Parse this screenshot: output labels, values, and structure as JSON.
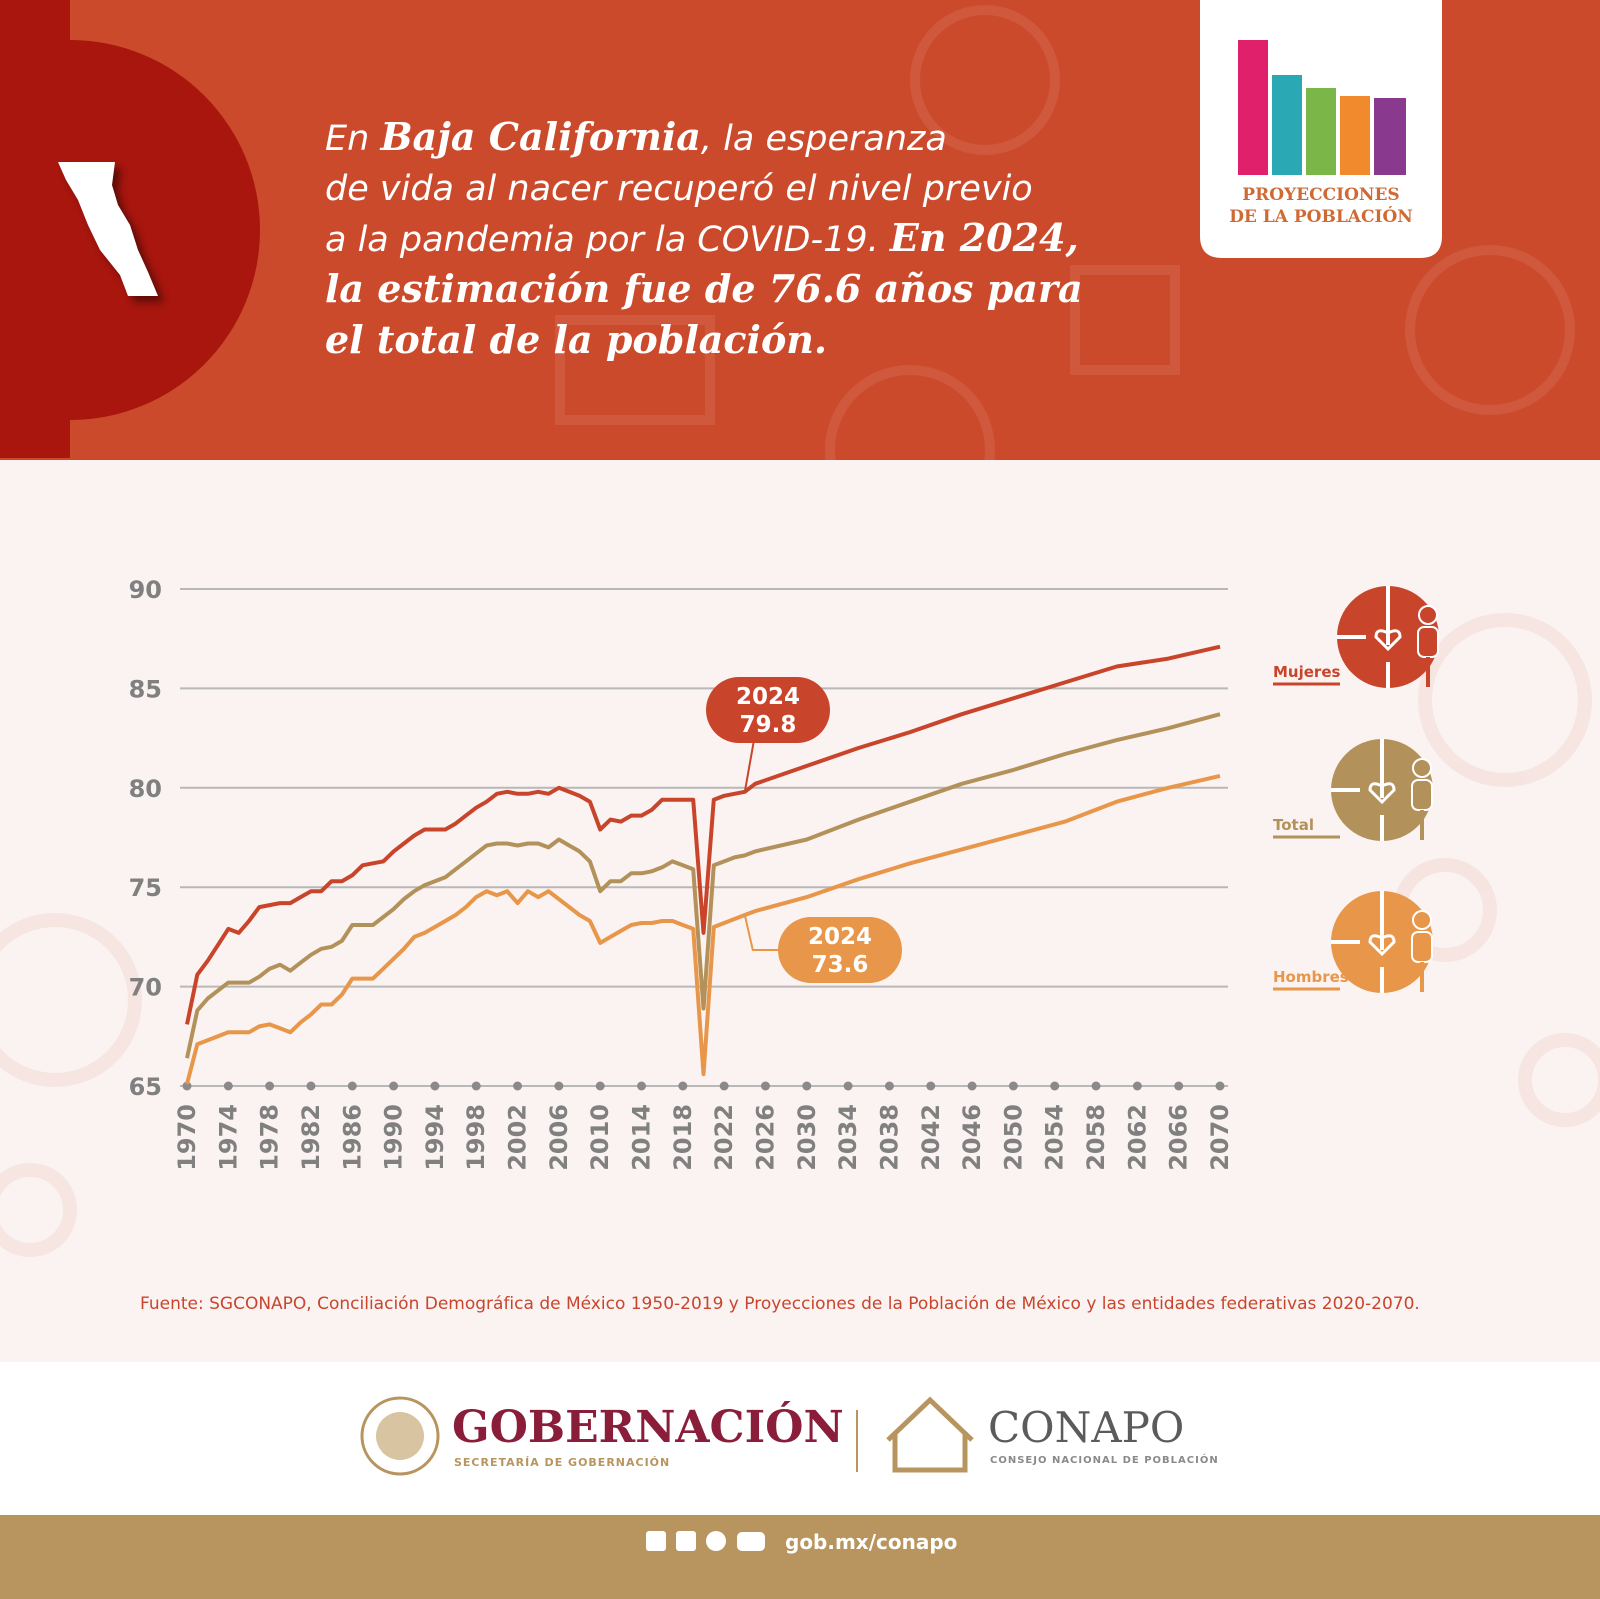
{
  "header": {
    "lines": [
      [
        "En ",
        "Baja California",
        ", la esperanza"
      ],
      [
        "de vida al nacer recuperó el nivel previo"
      ],
      [
        "a la pandemia por la COVID-19. ",
        "En 2024,"
      ],
      [
        "la estimación fue de 76.6 años para"
      ],
      [
        "el total de la población."
      ]
    ]
  },
  "logo": {
    "line1": "PROYECCIONES",
    "line2": "DE LA POBLACIÓN"
  },
  "chart_data": {
    "type": "line",
    "x": [
      1970,
      1971,
      1972,
      1973,
      1974,
      1975,
      1976,
      1977,
      1978,
      1979,
      1980,
      1981,
      1982,
      1983,
      1984,
      1985,
      1986,
      1987,
      1988,
      1989,
      1990,
      1991,
      1992,
      1993,
      1994,
      1995,
      1996,
      1997,
      1998,
      1999,
      2000,
      2001,
      2002,
      2003,
      2004,
      2005,
      2006,
      2007,
      2008,
      2009,
      2010,
      2011,
      2012,
      2013,
      2014,
      2015,
      2016,
      2017,
      2018,
      2019,
      2020,
      2021,
      2022,
      2023,
      2024,
      2025,
      2030,
      2035,
      2040,
      2045,
      2050,
      2055,
      2060,
      2065,
      2070
    ],
    "series": [
      {
        "name": "Mujeres",
        "color": "#c8452c",
        "values": [
          68.1,
          70.6,
          71.3,
          72.1,
          72.9,
          72.7,
          73.3,
          74.0,
          74.1,
          74.2,
          74.2,
          74.5,
          74.8,
          74.8,
          75.3,
          75.3,
          75.6,
          76.1,
          76.2,
          76.3,
          76.8,
          77.2,
          77.6,
          77.9,
          77.9,
          77.9,
          78.2,
          78.6,
          79.0,
          79.3,
          79.7,
          79.8,
          79.7,
          79.7,
          79.8,
          79.7,
          80.0,
          79.8,
          79.6,
          79.3,
          77.9,
          78.4,
          78.3,
          78.6,
          78.6,
          78.9,
          79.4,
          79.4,
          79.4,
          79.4,
          72.7,
          79.4,
          79.6,
          79.7,
          79.8,
          80.2,
          81.1,
          82.0,
          82.8,
          83.7,
          84.5,
          85.3,
          86.1,
          86.5,
          87.1
        ]
      },
      {
        "name": "Total",
        "color": "#b3915a",
        "values": [
          66.4,
          68.8,
          69.4,
          69.8,
          70.2,
          70.2,
          70.2,
          70.5,
          70.9,
          71.1,
          70.8,
          71.2,
          71.6,
          71.9,
          72.0,
          72.3,
          73.1,
          73.1,
          73.1,
          73.5,
          73.9,
          74.4,
          74.8,
          75.1,
          75.3,
          75.5,
          75.9,
          76.3,
          76.7,
          77.1,
          77.2,
          77.2,
          77.1,
          77.2,
          77.2,
          77.0,
          77.4,
          77.1,
          76.8,
          76.3,
          74.8,
          75.3,
          75.3,
          75.7,
          75.7,
          75.8,
          76.0,
          76.3,
          76.1,
          75.9,
          68.9,
          76.1,
          76.3,
          76.5,
          76.6,
          76.8,
          77.4,
          78.4,
          79.3,
          80.2,
          80.9,
          81.7,
          82.4,
          83.0,
          83.7
        ]
      },
      {
        "name": "Hombres",
        "color": "#e8964a",
        "values": [
          65.1,
          67.1,
          67.3,
          67.5,
          67.7,
          67.7,
          67.7,
          68.0,
          68.1,
          67.9,
          67.7,
          68.2,
          68.6,
          69.1,
          69.1,
          69.6,
          70.4,
          70.4,
          70.4,
          70.9,
          71.4,
          71.9,
          72.5,
          72.7,
          73.0,
          73.3,
          73.6,
          74.0,
          74.5,
          74.8,
          74.6,
          74.8,
          74.2,
          74.8,
          74.5,
          74.8,
          74.4,
          74.0,
          73.6,
          73.3,
          72.2,
          72.5,
          72.8,
          73.1,
          73.2,
          73.2,
          73.3,
          73.3,
          73.1,
          72.9,
          65.6,
          73.0,
          73.2,
          73.4,
          73.6,
          73.8,
          74.5,
          75.4,
          76.2,
          76.9,
          77.6,
          78.3,
          79.3,
          80.0,
          80.6
        ]
      }
    ],
    "annotations": [
      {
        "x": 2024,
        "y": 79.8,
        "color": "#c8452c"
      },
      {
        "x": 2024,
        "y": 73.6,
        "color": "#e8964a"
      }
    ],
    "xlim": [
      1970,
      2070
    ],
    "xticks": [
      1970,
      1974,
      1978,
      1982,
      1986,
      1990,
      1994,
      1998,
      2002,
      2006,
      2010,
      2014,
      2018,
      2022,
      2026,
      2030,
      2034,
      2038,
      2042,
      2046,
      2050,
      2054,
      2058,
      2062,
      2066,
      2070
    ],
    "ylim": [
      65,
      90
    ],
    "yticks": [
      65,
      70,
      75,
      80,
      85,
      90
    ],
    "grid": true,
    "legend": "right",
    "source": "Fuente: SGCONAPO, Conciliación Demográfica de México 1950-2019 y Proyecciones de la Población de México y las entidades federativas 2020-2070."
  },
  "footer": {
    "gob_title": "GOBERNACIÓN",
    "gob_sub": "SECRETARÍA DE GOBERNACIÓN",
    "conapo_title": "CONAPO",
    "conapo_sub": "CONSEJO NACIONAL DE POBLACIÓN",
    "url": "gob.mx/conapo"
  }
}
